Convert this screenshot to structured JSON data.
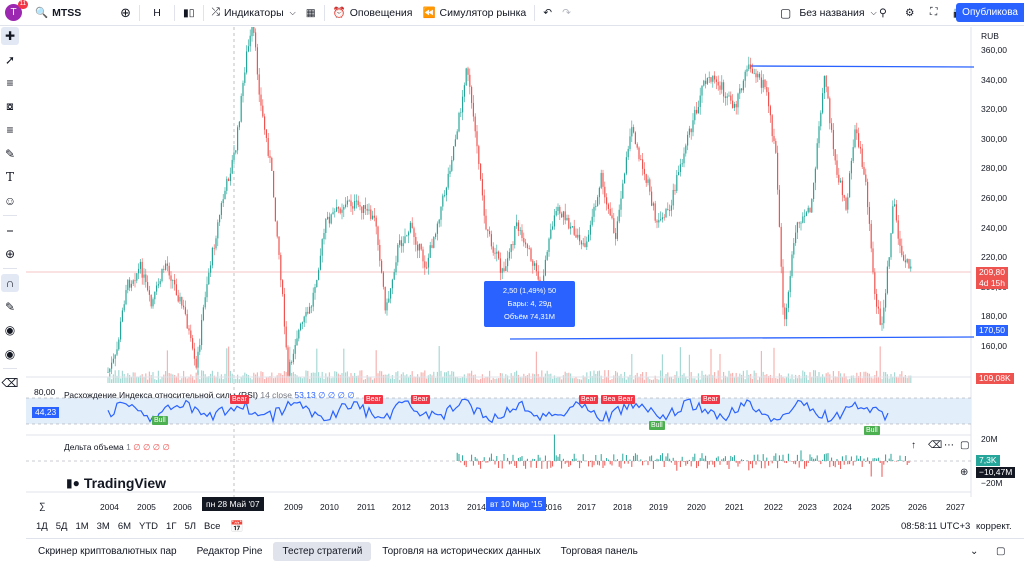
{
  "topbar": {
    "avatar_letter": "T",
    "avatar_badge": "11",
    "symbol": "MTSS",
    "interval": "H",
    "indicators": "Индикаторы",
    "alerts": "Оповещения",
    "replay": "Симулятор рынка",
    "layout_name": "Без названия",
    "publish": "Опубликова"
  },
  "left_tools": [
    "crosshair-icon",
    "trend-line-icon",
    "fib-icon",
    "pattern-icon",
    "projection-icon",
    "brush-icon",
    "text-icon",
    "emoji-icon",
    "ruler-icon",
    "zoom-icon",
    "magnet-icon",
    "lock-drawing-icon",
    "lock-icon",
    "eye-icon",
    "trash-icon"
  ],
  "price_axis": {
    "currency": "RUB",
    "ticks": [
      "360,00",
      "340,00",
      "320,00",
      "300,00",
      "280,00",
      "260,00",
      "240,00",
      "220,00",
      "200,00",
      "180,00",
      "160,00"
    ],
    "last_price": "209,80",
    "countdown": "4d 15h",
    "line_price": "170,50",
    "volume_badge": "109,08K"
  },
  "tooltip": {
    "line1": "2,50 (1,49%) 50",
    "line2": "Бары: 4, 29д",
    "line3": "Объём 74,31M"
  },
  "rsi_pane": {
    "title": "Расхождение Индекса относительной силы (RSI)",
    "params": "14 close",
    "value": "53,13",
    "dots": "∅ ∅ ∅ ∅",
    "level_80": "80,00",
    "current": "44,23",
    "bear_label": "Bear",
    "bull_label": "Bull"
  },
  "delta_pane": {
    "title": "Дельта объема",
    "param": "1",
    "dots": "∅ ∅ ∅ ∅",
    "axis_top": "20M",
    "axis_bottom": "−20M",
    "badge_pos": "7,3K",
    "badge_neg": "−10,47M"
  },
  "logo": "TradingView",
  "x_axis": {
    "years": [
      "2004",
      "2005",
      "2006",
      "2009",
      "2010",
      "2011",
      "2012",
      "2013",
      "2014",
      "2016",
      "2017",
      "2018",
      "2019",
      "2020",
      "2021",
      "2022",
      "2023",
      "2024",
      "2025",
      "2026",
      "2027"
    ],
    "crosshair_date": "пн 28 Май '07",
    "selected_date": "вт 10 Мар '15"
  },
  "range_bar": {
    "ranges": [
      "1Д",
      "5Д",
      "1М",
      "3М",
      "6М",
      "YTD",
      "1Г",
      "5Л",
      "Все"
    ],
    "time": "08:58:11 UTC+3",
    "adj": "коррект."
  },
  "bottom_tabs": [
    "Скринер криптовалютных пар",
    "Редактор Pine",
    "Тестер стратегий",
    "Торговля на исторических данных",
    "Торговая панель"
  ],
  "colors": {
    "up": "#26a69a",
    "down": "#ef5350",
    "accent": "#2962ff",
    "rsi_line": "#2962ff"
  }
}
